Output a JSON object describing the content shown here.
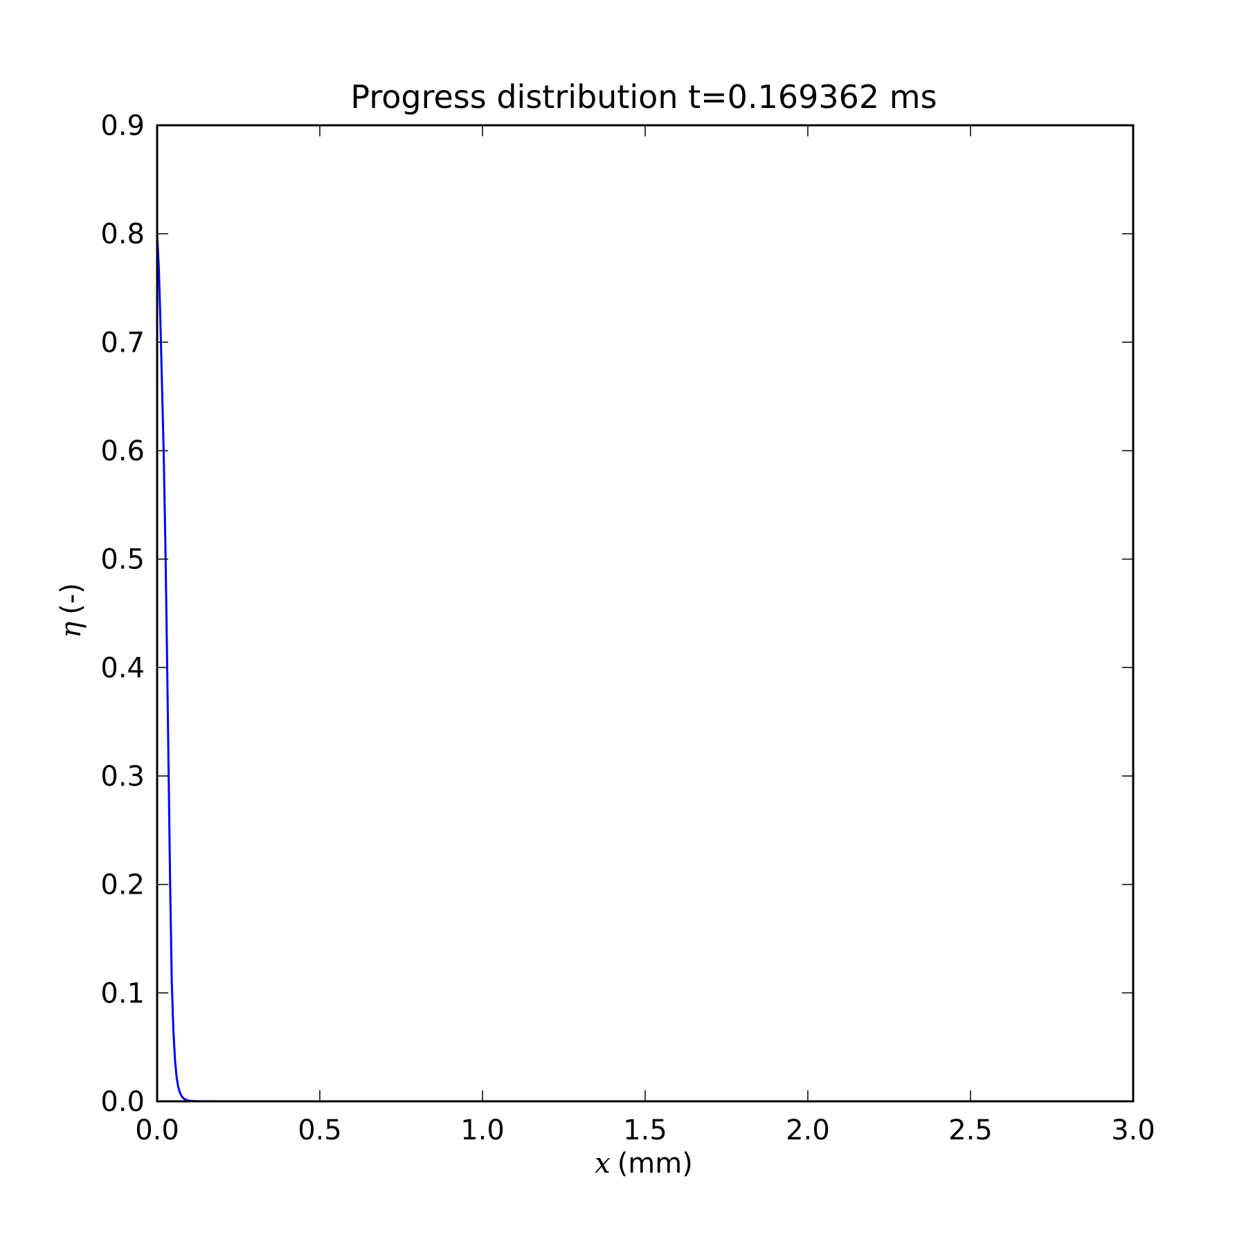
{
  "chart_data": {
    "type": "line",
    "title": "Progress distribution t=0.169362 ms",
    "xlabel_symbol": "x",
    "xlabel_unit": "(mm)",
    "ylabel_symbol": "η",
    "ylabel_unit": "(-)",
    "xlim": [
      0.0,
      3.0
    ],
    "ylim": [
      0.0,
      0.9
    ],
    "xticks": [
      "0.0",
      "0.5",
      "1.0",
      "1.5",
      "2.0",
      "2.5",
      "3.0"
    ],
    "yticks": [
      "0.0",
      "0.1",
      "0.2",
      "0.3",
      "0.4",
      "0.5",
      "0.6",
      "0.7",
      "0.8",
      "0.9"
    ],
    "grid": false,
    "legend": false,
    "series": [
      {
        "color": "#0000ff",
        "x": [
          0.0,
          0.005,
          0.01,
          0.015,
          0.02,
          0.025,
          0.03,
          0.035,
          0.04,
          0.045,
          0.05,
          0.055,
          0.06,
          0.065,
          0.07,
          0.075,
          0.08,
          0.085,
          0.09,
          0.095,
          0.1,
          0.11,
          0.12,
          0.13,
          0.15,
          0.2,
          0.3,
          0.5,
          1.0,
          1.5,
          2.0,
          2.5,
          3.0
        ],
        "y": [
          0.8,
          0.77,
          0.72,
          0.66,
          0.6,
          0.52,
          0.42,
          0.31,
          0.2,
          0.11,
          0.065,
          0.038,
          0.022,
          0.013,
          0.008,
          0.005,
          0.003,
          0.002,
          0.0012,
          0.0008,
          0.0005,
          0.0003,
          0.0002,
          0.0001,
          5e-05,
          0.0,
          0.0,
          0.0,
          0.0,
          0.0,
          0.0,
          0.0,
          0.0
        ]
      }
    ]
  }
}
